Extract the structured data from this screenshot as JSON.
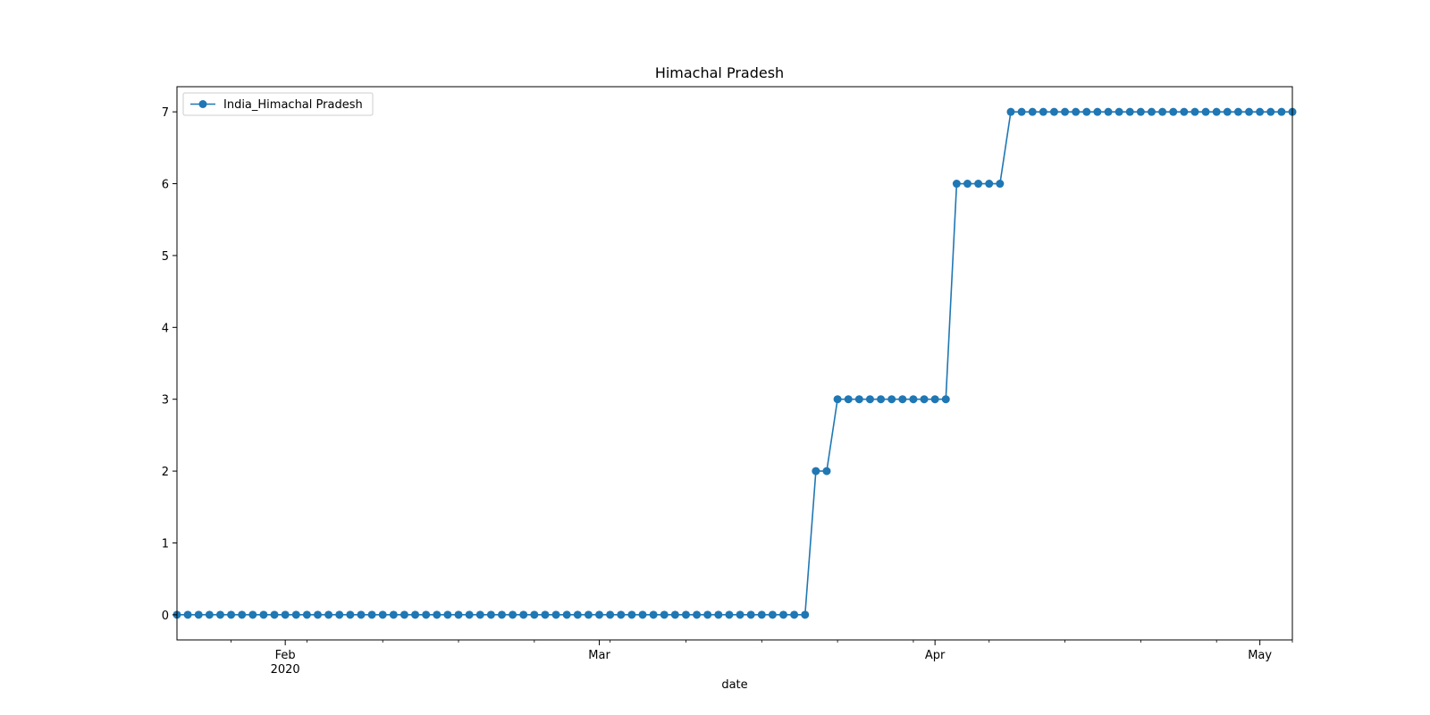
{
  "chart_data": {
    "type": "line",
    "title": "Himachal Pradesh",
    "xlabel": "date",
    "ylabel": "",
    "x_start": "2020-01-22",
    "x_end": "2020-05-04",
    "xlim": [
      "2020-01-22",
      "2020-05-04"
    ],
    "ylim": [
      -0.35,
      7.35
    ],
    "y_ticks": [
      0,
      1,
      2,
      3,
      4,
      5,
      6,
      7
    ],
    "x_ticks": [
      {
        "date": "2020-02-01",
        "label": "Feb",
        "sublabel": "2020"
      },
      {
        "date": "2020-03-01",
        "label": "Mar",
        "sublabel": ""
      },
      {
        "date": "2020-04-01",
        "label": "Apr",
        "sublabel": ""
      },
      {
        "date": "2020-05-01",
        "label": "May",
        "sublabel": ""
      }
    ],
    "grid": false,
    "legend_position": "top-left",
    "series": [
      {
        "name": "India_Himachal Pradesh",
        "color": "#1f77b4",
        "marker": "circle",
        "values": [
          0,
          0,
          0,
          0,
          0,
          0,
          0,
          0,
          0,
          0,
          0,
          0,
          0,
          0,
          0,
          0,
          0,
          0,
          0,
          0,
          0,
          0,
          0,
          0,
          0,
          0,
          0,
          0,
          0,
          0,
          0,
          0,
          0,
          0,
          0,
          0,
          0,
          0,
          0,
          0,
          0,
          0,
          0,
          0,
          0,
          0,
          0,
          0,
          0,
          0,
          0,
          0,
          0,
          0,
          0,
          0,
          0,
          0,
          0,
          2,
          2,
          3,
          3,
          3,
          3,
          3,
          3,
          3,
          3,
          3,
          3,
          3,
          6,
          6,
          6,
          6,
          6,
          7,
          7,
          7,
          7,
          7,
          7,
          7,
          7,
          7,
          7,
          7,
          7,
          7,
          7,
          7,
          7,
          7,
          7,
          7,
          7,
          7,
          7,
          7,
          7,
          7,
          7,
          7
        ]
      }
    ]
  }
}
